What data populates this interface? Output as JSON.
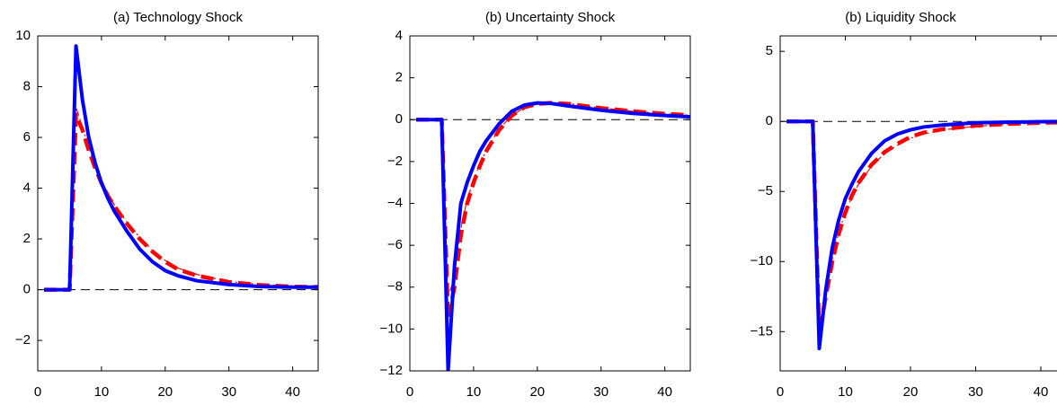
{
  "chart_data": [
    {
      "type": "line",
      "title": "(a) Technology Shock",
      "x": [
        1,
        2,
        3,
        4,
        5,
        6,
        7,
        8,
        9,
        10,
        11,
        12,
        14,
        16,
        18,
        20,
        22,
        25,
        30,
        35,
        40,
        45
      ],
      "series": [
        {
          "color": "#0000ff",
          "linestyle": "solid",
          "values": [
            0,
            0,
            0,
            0,
            0,
            9.6,
            7.5,
            6.0,
            5.0,
            4.2,
            3.6,
            3.1,
            2.3,
            1.6,
            1.1,
            0.75,
            0.55,
            0.35,
            0.2,
            0.12,
            0.1,
            0.1
          ]
        },
        {
          "color": "#ff0000",
          "linestyle": "dashed",
          "values": [
            0,
            0,
            0,
            0,
            0,
            6.9,
            6.3,
            5.5,
            4.8,
            4.2,
            3.7,
            3.3,
            2.6,
            2.0,
            1.5,
            1.1,
            0.8,
            0.55,
            0.3,
            0.18,
            0.12,
            0.1
          ]
        },
        {
          "color": "#ff0000",
          "linestyle": "dashdot",
          "values": [
            0,
            0,
            0,
            0,
            0,
            7.2,
            6.4,
            5.6,
            4.9,
            4.3,
            3.8,
            3.35,
            2.65,
            2.05,
            1.55,
            1.15,
            0.85,
            0.6,
            0.32,
            0.2,
            0.14,
            0.12
          ]
        }
      ],
      "hline": 0,
      "xlim": [
        0,
        44
      ],
      "ylim": [
        -3.2,
        10
      ],
      "xticks": [
        0,
        10,
        20,
        30,
        40
      ],
      "yticks": [
        {
          "value": -2,
          "label": "−2"
        },
        0,
        2,
        4,
        6,
        8,
        10
      ]
    },
    {
      "type": "line",
      "title": "(b) Uncertainty Shock",
      "x": [
        1,
        2,
        3,
        4,
        5,
        6,
        7,
        8,
        9,
        10,
        11,
        12,
        14,
        16,
        18,
        20,
        22,
        25,
        30,
        35,
        40,
        45
      ],
      "series": [
        {
          "color": "#0000ff",
          "linestyle": "solid",
          "values": [
            0,
            0,
            0,
            0,
            0,
            -12,
            -7,
            -4,
            -3,
            -2.2,
            -1.5,
            -1.0,
            -0.2,
            0.4,
            0.7,
            0.8,
            0.78,
            0.65,
            0.45,
            0.3,
            0.2,
            0.12
          ]
        },
        {
          "color": "#ff0000",
          "linestyle": "dashed",
          "values": [
            0,
            0,
            0,
            0,
            0,
            -9.5,
            -8,
            -5.5,
            -4,
            -3,
            -2.2,
            -1.5,
            -0.5,
            0.2,
            0.6,
            0.75,
            0.8,
            0.75,
            0.55,
            0.4,
            0.28,
            0.2
          ]
        },
        {
          "color": "#ff0000",
          "linestyle": "dashdot",
          "values": [
            0,
            0,
            0,
            0,
            0,
            -8.5,
            -7.5,
            -5.2,
            -3.8,
            -2.9,
            -2.1,
            -1.45,
            -0.45,
            0.2,
            0.58,
            0.74,
            0.8,
            0.76,
            0.56,
            0.4,
            0.28,
            0.2
          ]
        }
      ],
      "hline": 0,
      "xlim": [
        0,
        44
      ],
      "ylim": [
        -12,
        4
      ],
      "xticks": [
        0,
        10,
        20,
        30,
        40
      ],
      "yticks": [
        {
          "value": -12,
          "label": "−12"
        },
        {
          "value": -10,
          "label": "−10"
        },
        {
          "value": -8,
          "label": "−8"
        },
        {
          "value": -6,
          "label": "−6"
        },
        {
          "value": -4,
          "label": "−4"
        },
        {
          "value": -2,
          "label": "−2"
        },
        0,
        2,
        4
      ]
    },
    {
      "type": "line",
      "title": "(b) Liquidity Shock",
      "x": [
        1,
        2,
        3,
        4,
        5,
        6,
        7,
        8,
        9,
        10,
        11,
        12,
        14,
        16,
        18,
        20,
        22,
        25,
        30,
        35,
        40,
        45
      ],
      "series": [
        {
          "color": "#0000ff",
          "linestyle": "solid",
          "values": [
            0,
            0,
            0,
            0,
            0,
            -16.2,
            -12,
            -9,
            -7,
            -5.5,
            -4.5,
            -3.6,
            -2.3,
            -1.4,
            -0.9,
            -0.6,
            -0.4,
            -0.25,
            -0.1,
            -0.05,
            -0.02,
            0
          ]
        },
        {
          "color": "#ff0000",
          "linestyle": "dashed",
          "values": [
            0,
            0,
            0,
            0,
            0,
            -15.2,
            -12.5,
            -10,
            -8,
            -6.5,
            -5.3,
            -4.4,
            -3.1,
            -2.2,
            -1.6,
            -1.1,
            -0.8,
            -0.55,
            -0.3,
            -0.18,
            -0.1,
            -0.05
          ]
        },
        {
          "color": "#ff0000",
          "linestyle": "dashdot",
          "values": [
            0,
            0,
            0,
            0,
            0,
            -14.5,
            -12.2,
            -9.8,
            -7.9,
            -6.5,
            -5.4,
            -4.5,
            -3.2,
            -2.3,
            -1.7,
            -1.2,
            -0.9,
            -0.6,
            -0.35,
            -0.2,
            -0.12,
            -0.06
          ]
        }
      ],
      "hline": 0,
      "xlim": [
        0,
        44
      ],
      "ylim": [
        -17.8,
        6.1
      ],
      "xticks": [
        0,
        10,
        20,
        30,
        40
      ],
      "yticks": [
        {
          "value": -15,
          "label": "−15"
        },
        {
          "value": -10,
          "label": "−10"
        },
        {
          "value": -5,
          "label": "−5"
        },
        0,
        5
      ]
    }
  ]
}
